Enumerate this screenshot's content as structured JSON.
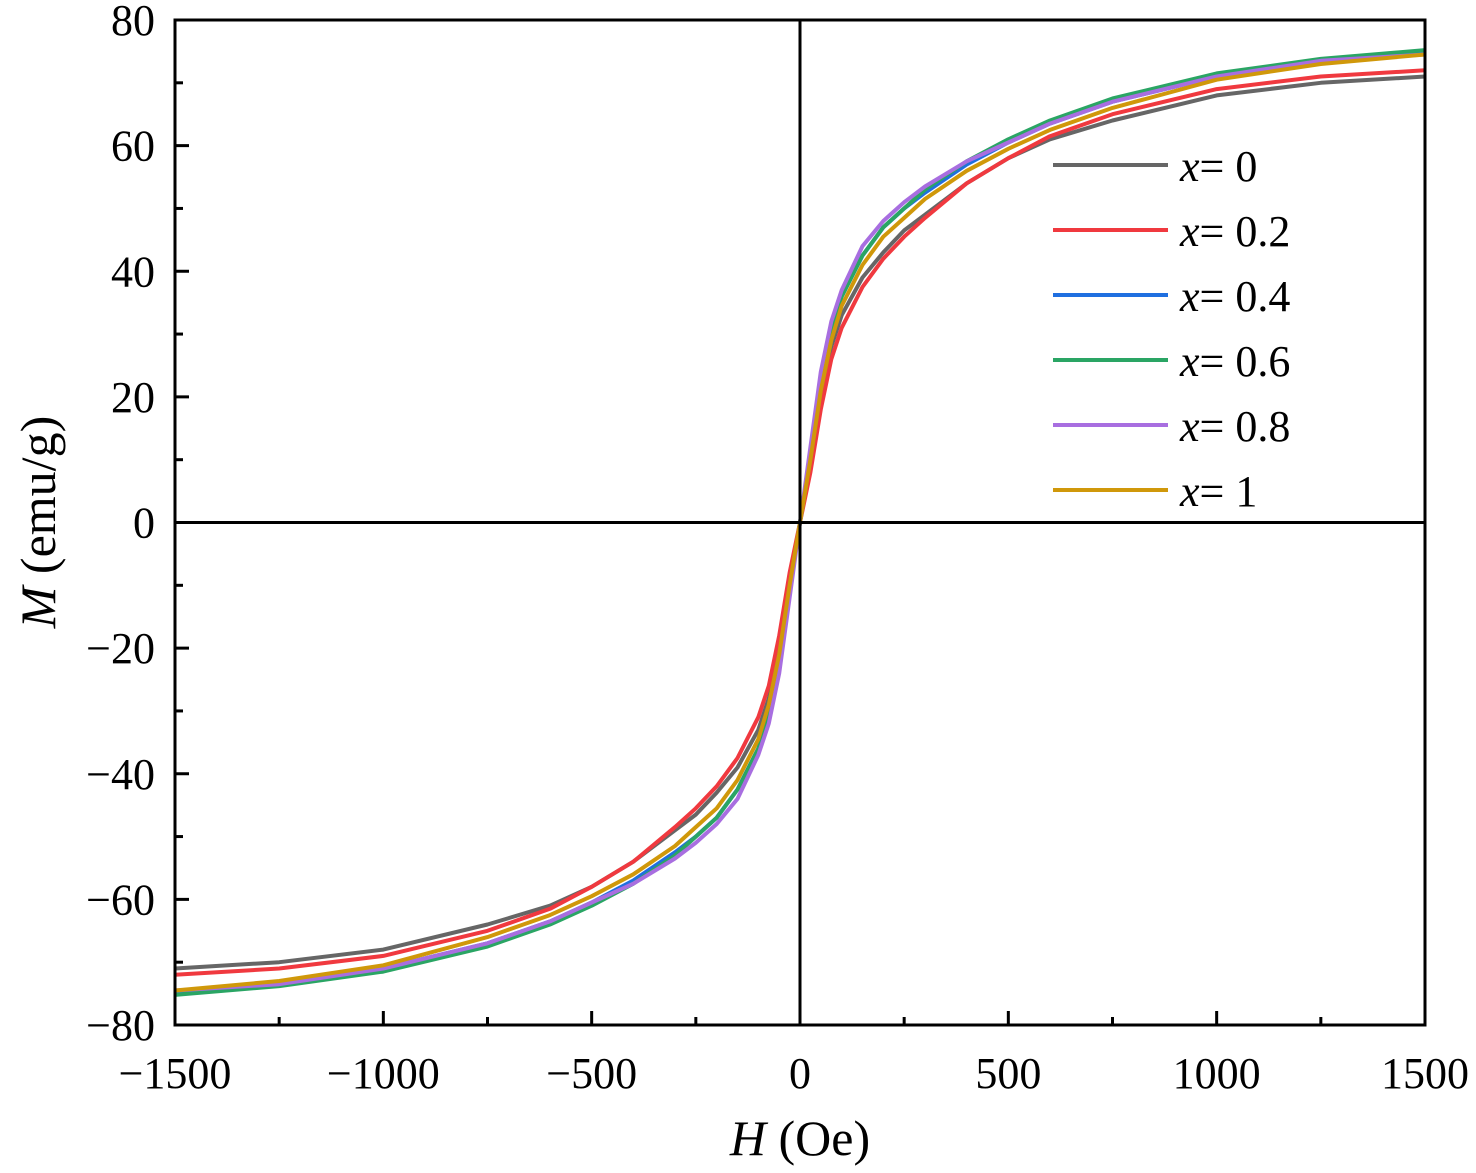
{
  "chart_data": {
    "type": "line",
    "xlabel": {
      "var": "H",
      "unit": " (Oe)"
    },
    "ylabel": {
      "var": "M",
      "unit": " (emu/g)"
    },
    "xlim": [
      -1500,
      1500
    ],
    "ylim": [
      -80,
      80
    ],
    "xticks": [
      -1500,
      -1000,
      -500,
      0,
      500,
      1000,
      1500
    ],
    "xtick_labels": [
      "−1500",
      "−1000",
      "−500",
      "0",
      "500",
      "1000",
      "1500"
    ],
    "yticks": [
      -80,
      -60,
      -40,
      -20,
      0,
      20,
      40,
      60,
      80
    ],
    "ytick_labels": [
      "−80",
      "−60",
      "−40",
      "−20",
      "0",
      "20",
      "40",
      "60",
      "80"
    ],
    "grid": false,
    "legend_position": "top-right",
    "zero_lines": true,
    "x": [
      0,
      25,
      50,
      75,
      100,
      150,
      200,
      250,
      300,
      400,
      500,
      600,
      750,
      1000,
      1250,
      1500
    ],
    "symmetric": "odd",
    "series": [
      {
        "name": {
          "var": "x",
          "rest": "= 0"
        },
        "color": "#666666",
        "values": [
          0,
          10,
          20,
          28,
          33,
          39,
          43,
          46.5,
          49,
          54,
          58,
          61,
          64,
          68,
          70,
          71
        ]
      },
      {
        "name": {
          "var": "x",
          "rest": "= 0.2"
        },
        "color": "#f0393f",
        "values": [
          0,
          8,
          18,
          26,
          31,
          37.5,
          42,
          45.5,
          48.5,
          54,
          58,
          61.5,
          65,
          69,
          71,
          72
        ]
      },
      {
        "name": {
          "var": "x",
          "rest": "= 0.4"
        },
        "color": "#1f6fe0",
        "values": [
          0,
          11,
          23,
          31,
          36,
          42.5,
          47,
          50,
          52.5,
          57,
          60.5,
          63.5,
          67,
          71,
          73.5,
          75
        ]
      },
      {
        "name": {
          "var": "x",
          "rest": "= 0.6"
        },
        "color": "#2aa564",
        "values": [
          0,
          11,
          23,
          31,
          36,
          42.5,
          47,
          50,
          53,
          57.5,
          61,
          64,
          67.5,
          71.5,
          73.8,
          75.2
        ]
      },
      {
        "name": {
          "var": "x",
          "rest": "= 0.8"
        },
        "color": "#a86ee0",
        "values": [
          0,
          12,
          24,
          32,
          37,
          44,
          48,
          51,
          53.5,
          57.5,
          60.5,
          63.5,
          67,
          71,
          73.5,
          74.5
        ]
      },
      {
        "name": {
          "var": "x",
          "rest": "= 1"
        },
        "color": "#d0980a",
        "values": [
          0,
          10,
          21,
          29,
          34.5,
          41,
          45.5,
          48.5,
          51.5,
          56,
          59.5,
          62.5,
          66,
          70.5,
          73,
          74.5
        ]
      }
    ]
  }
}
